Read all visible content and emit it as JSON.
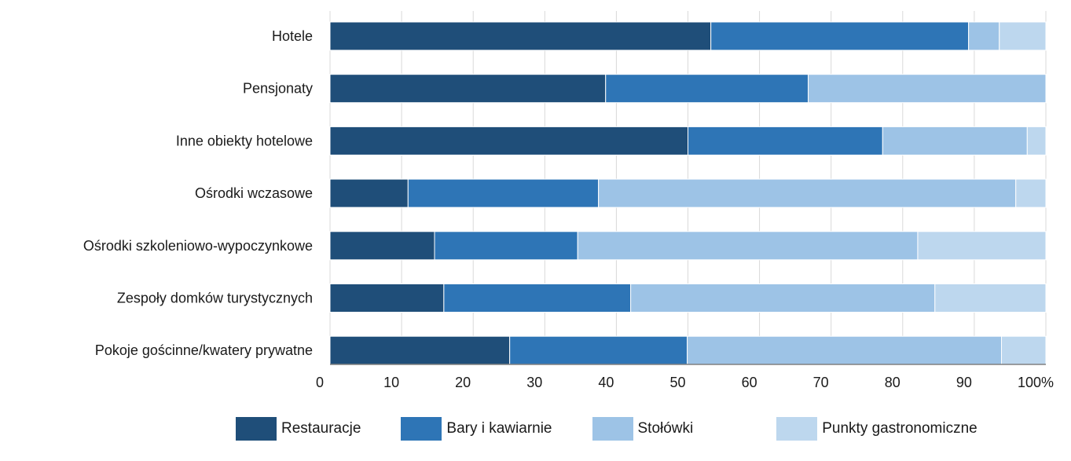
{
  "chart_data": {
    "type": "bar",
    "orientation": "horizontal",
    "stacked": true,
    "categories": [
      "Hotele",
      "Pensjonaty",
      "Inne obiekty hotelowe",
      "Ośrodki wczasowe",
      "Ośrodki szkoleniowo-wypoczynkowe",
      "Zespoły domków turystycznych ",
      "Pokoje gościnne/kwatery prywatne"
    ],
    "series": [
      {
        "name": "Restauracje",
        "color": "#1f4e79",
        "values": [
          53.2,
          38.5,
          50.0,
          10.9,
          14.6,
          15.9,
          25.1
        ]
      },
      {
        "name": "Bary i kawiarnie",
        "color": "#2e75b6",
        "values": [
          36.0,
          28.3,
          27.2,
          26.6,
          20.0,
          26.1,
          24.8
        ]
      },
      {
        "name": "Stołówki",
        "color": "#9dc3e6",
        "values": [
          4.3,
          33.2,
          20.2,
          58.3,
          47.5,
          42.5,
          43.9
        ]
      },
      {
        "name": "Punkty gastronomiczne",
        "color": "#bdd7ee",
        "values": [
          6.5,
          0.0,
          2.6,
          4.2,
          17.9,
          15.5,
          6.2
        ]
      }
    ],
    "x_ticks": [
      "0",
      "10",
      "20",
      "30",
      "40",
      "50",
      "60",
      "70",
      "80",
      "90",
      "100%"
    ],
    "xlim": [
      0,
      100
    ],
    "grid": true,
    "legend_position": "bottom"
  }
}
